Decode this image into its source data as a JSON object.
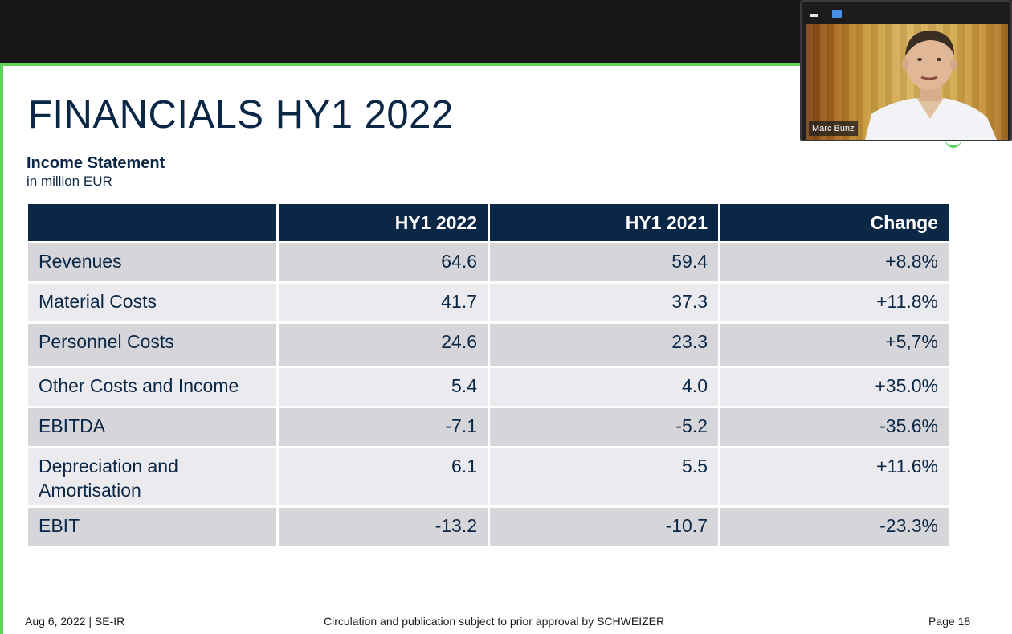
{
  "slide": {
    "title": "FINANCIALS HY1 2022",
    "subtitle": "Income Statement",
    "units": "in million EUR"
  },
  "table": {
    "headers": [
      "",
      "HY1 2022",
      "HY1 2021",
      "Change"
    ],
    "rows": [
      {
        "label": "Revenues",
        "hy1_2022": "64.6",
        "hy1_2021": "59.4",
        "change": "+8.8%"
      },
      {
        "label": "Material Costs",
        "hy1_2022": "41.7",
        "hy1_2021": "37.3",
        "change": "+11.8%"
      },
      {
        "label": "Personnel Costs",
        "hy1_2022": "24.6",
        "hy1_2021": "23.3",
        "change": "+5,7%"
      },
      {
        "label": "Other Costs and Income",
        "hy1_2022": "5.4",
        "hy1_2021": "4.0",
        "change": "+35.0%"
      },
      {
        "label": "EBITDA",
        "hy1_2022": "-7.1",
        "hy1_2021": "-5.2",
        "change": "-35.6%"
      },
      {
        "label": "Depreciation and Amortisation",
        "hy1_2022": "6.1",
        "hy1_2021": "5.5",
        "change": "+11.6%"
      },
      {
        "label": "EBIT",
        "hy1_2022": "-13.2",
        "hy1_2021": "-10.7",
        "change": "-23.3%"
      }
    ]
  },
  "footer": {
    "left": "Aug 6, 2022 | SE-IR",
    "center": "Circulation and publication subject to prior approval by SCHWEIZER",
    "right": "Page 18"
  },
  "video": {
    "participant_name": "Marc Bunz",
    "controls": {
      "minimize_icon": "minimize-icon",
      "maximize_icon": "maximize-icon"
    }
  },
  "colors": {
    "navy": "#0b2746",
    "accent_green": "#5fd35a",
    "row_dark": "#d5d5da",
    "row_light": "#ebebef"
  }
}
